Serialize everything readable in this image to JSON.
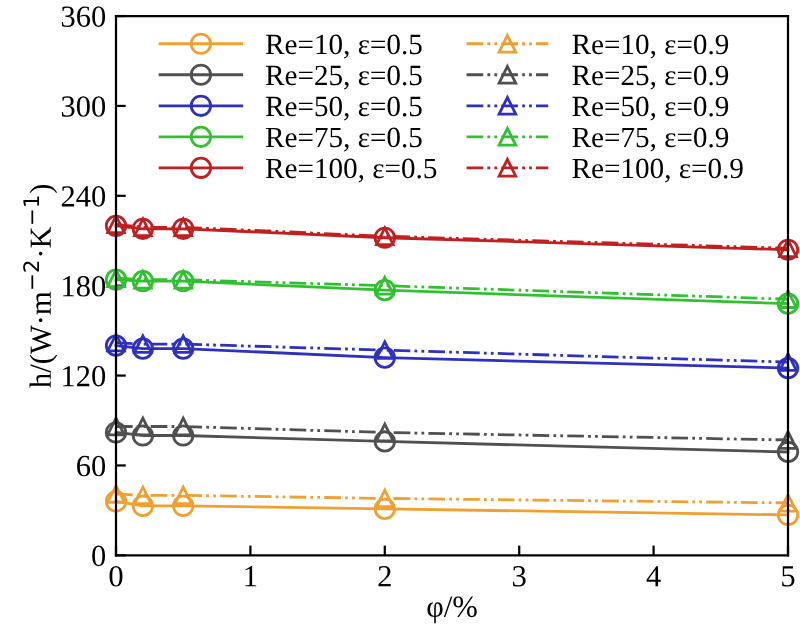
{
  "chart_data": {
    "type": "line",
    "xlabel": "φ/%",
    "ylabel": "h/(W·m$^{−2}$·K$^{−1}$)",
    "x": [
      0,
      0.2,
      0.5,
      2,
      5
    ],
    "xlim": [
      0,
      5
    ],
    "xticks": [
      0,
      1,
      2,
      3,
      4,
      5
    ],
    "ylim": [
      0,
      360
    ],
    "yticks": [
      0,
      60,
      120,
      180,
      240,
      300,
      360
    ],
    "grid": false,
    "legend": "top",
    "series": [
      {
        "name": "Re=10, ε=0.5",
        "color": "#f0a030",
        "marker": "circle",
        "line_style": "solid",
        "values": [
          36,
          33,
          33,
          31,
          27
        ]
      },
      {
        "name": "Re=10, ε=0.9",
        "color": "#f0a030",
        "marker": "triangle",
        "line_style": "dashed",
        "values": [
          41,
          40,
          40,
          38,
          35
        ]
      },
      {
        "name": "Re=25, ε=0.5",
        "color": "#505050",
        "marker": "circle",
        "line_style": "solid",
        "values": [
          82,
          80,
          80,
          76,
          69
        ]
      },
      {
        "name": "Re=25, ε=0.9",
        "color": "#505050",
        "marker": "triangle",
        "line_style": "dashed",
        "values": [
          86,
          86,
          86,
          82,
          77
        ]
      },
      {
        "name": "Re=50, ε=0.5",
        "color": "#3030c0",
        "marker": "circle",
        "line_style": "solid",
        "values": [
          140,
          138,
          138,
          132,
          125
        ]
      },
      {
        "name": "Re=50, ε=0.9",
        "color": "#3030c0",
        "marker": "triangle",
        "line_style": "dashed",
        "values": [
          142,
          141,
          141,
          137,
          129
        ]
      },
      {
        "name": "Re=75, ε=0.5",
        "color": "#30c030",
        "marker": "circle",
        "line_style": "solid",
        "values": [
          184,
          183,
          183,
          177,
          168
        ]
      },
      {
        "name": "Re=75, ε=0.9",
        "color": "#30c030",
        "marker": "triangle",
        "line_style": "dashed",
        "values": [
          185,
          184,
          184,
          180,
          171
        ]
      },
      {
        "name": "Re=100, ε=0.5",
        "color": "#c02020",
        "marker": "circle",
        "line_style": "solid",
        "values": [
          220,
          218,
          218,
          212,
          204
        ]
      },
      {
        "name": "Re=100, ε=0.9",
        "color": "#c02020",
        "marker": "triangle",
        "line_style": "dashed",
        "values": [
          221,
          219,
          219,
          213,
          205
        ]
      }
    ]
  }
}
